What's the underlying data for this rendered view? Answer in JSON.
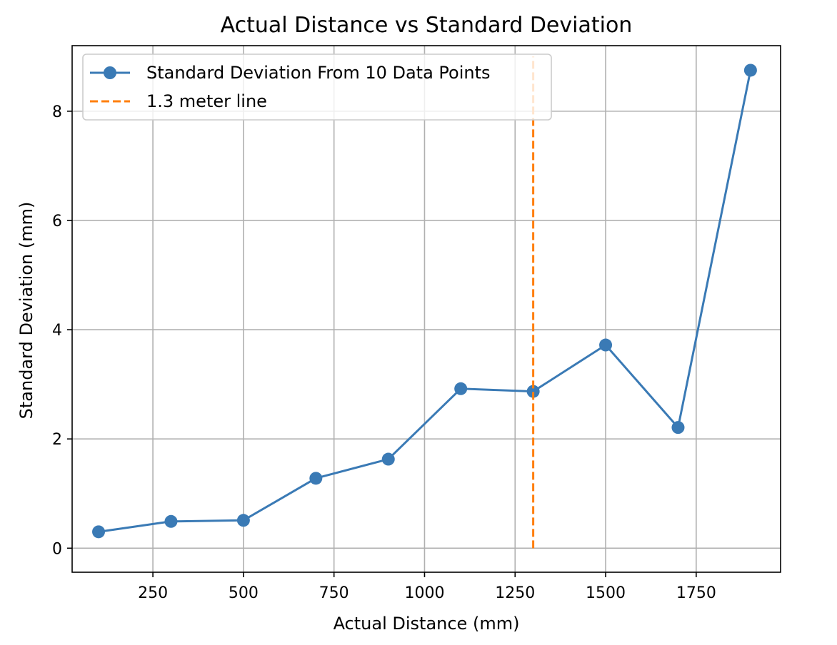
{
  "chart_data": {
    "type": "line",
    "title": "Actual Distance vs Standard Deviation",
    "xlabel": "Actual Distance (mm)",
    "ylabel": "Standard Deviation (mm)",
    "xlim": [
      27,
      1983
    ],
    "ylim": [
      -0.44,
      9.2
    ],
    "xticks": [
      250,
      500,
      750,
      1000,
      1250,
      1500,
      1750
    ],
    "yticks": [
      0,
      2,
      4,
      6,
      8
    ],
    "grid": true,
    "legend_position": "upper-left",
    "series": [
      {
        "name": "Standard Deviation From 10 Data Points",
        "style": "line-with-circle-markers",
        "color": "#3a7ab5",
        "x": [
          100,
          300,
          500,
          700,
          900,
          1100,
          1300,
          1500,
          1700,
          1900
        ],
        "y": [
          0.3,
          0.49,
          0.51,
          1.28,
          1.63,
          2.92,
          2.87,
          3.72,
          2.21,
          8.75
        ]
      },
      {
        "name": "1.3 meter line",
        "style": "dashed-vertical",
        "color": "#ff7f0e",
        "x": [
          1300,
          1300
        ],
        "y": [
          0,
          9
        ]
      }
    ]
  }
}
